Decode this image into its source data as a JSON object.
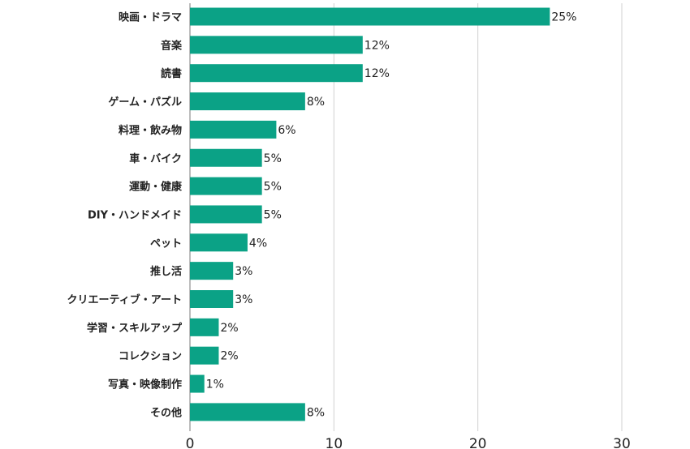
{
  "chart_data": {
    "type": "bar",
    "orientation": "horizontal",
    "categories": [
      "映画・ドラマ",
      "音楽",
      "読書",
      "ゲーム・パズル",
      "料理・飲み物",
      "車・バイク",
      "運動・健康",
      "DIY・ハンドメイド",
      "ペット",
      "推し活",
      "クリエーティブ・アート",
      "学習・スキルアップ",
      "コレクション",
      "写真・映像制作",
      "その他"
    ],
    "values": [
      25,
      12,
      12,
      8,
      6,
      5,
      5,
      5,
      4,
      3,
      3,
      2,
      2,
      1,
      8
    ],
    "value_labels": [
      "25%",
      "12%",
      "12%",
      "8%",
      "6%",
      "5%",
      "5%",
      "5%",
      "4%",
      "3%",
      "3%",
      "2%",
      "2%",
      "1%",
      "8%"
    ],
    "x_ticks": [
      0,
      10,
      20,
      30
    ],
    "xlim": [
      0,
      30
    ],
    "grid": true,
    "bar_color": "#0ba286",
    "grid_color": "#d0d0d0",
    "title": "",
    "xlabel": "",
    "ylabel": ""
  }
}
